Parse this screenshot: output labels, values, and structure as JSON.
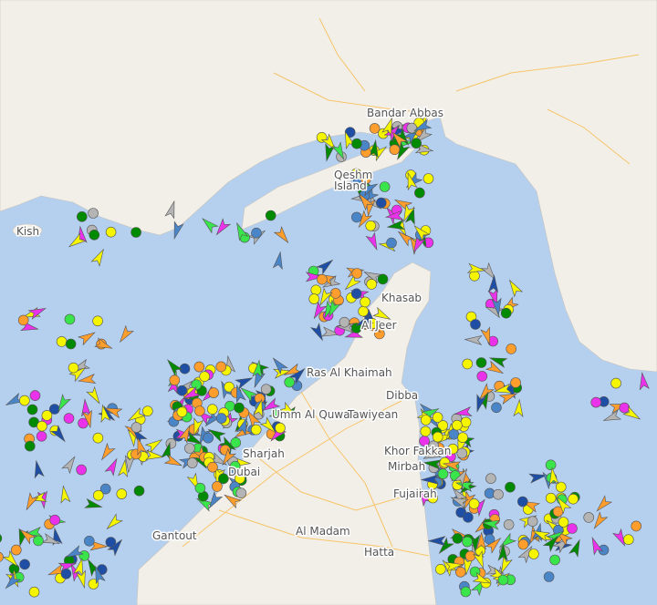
{
  "map": {
    "colors": {
      "water": "#b5d0ef",
      "land": "#f2efe9",
      "road": "#f7c469",
      "park": "#dde8c8"
    },
    "places": [
      {
        "name": "Bandar Abbas"
      },
      {
        "name": "Qeshm"
      },
      {
        "name": "Island"
      },
      {
        "name": "Kish"
      },
      {
        "name": "Khasab"
      },
      {
        "name": "Al Jeer"
      },
      {
        "name": "Ras Al Khaimah"
      },
      {
        "name": "Dibba"
      },
      {
        "name": "Umm Al Quwain"
      },
      {
        "name": "Tawiyean"
      },
      {
        "name": "Sharjah"
      },
      {
        "name": "Dubai"
      },
      {
        "name": "Khor Fakkan"
      },
      {
        "name": "Mirbah"
      },
      {
        "name": "Fujairah"
      },
      {
        "name": "Gantout"
      },
      {
        "name": "Al Madam"
      },
      {
        "name": "Hatta"
      }
    ],
    "vessel_type_colors": {
      "tanker": "#ff9d2d",
      "cargo": "#f5f500",
      "passenger": "#1e4fa5",
      "tug_special": "#39e54a",
      "fishing": "#008a00",
      "pleasure": "#ea32ea",
      "unknown": "#b4b4b4",
      "navigation_aid": "#4a85c8"
    },
    "vessel_icons": [
      "circle-anchored-icon",
      "arrow-underway-icon"
    ]
  }
}
